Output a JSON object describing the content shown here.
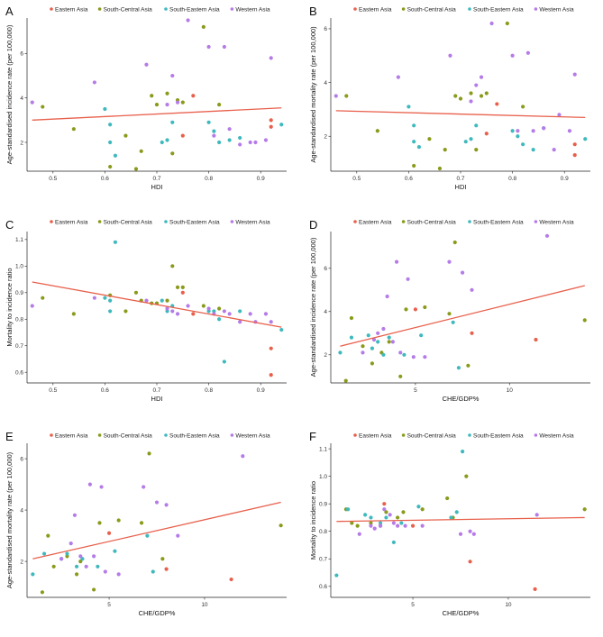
{
  "legend_title": "",
  "region_colors": {
    "Eastern Asia": "#e8604c",
    "South-Central Asia": "#8a9a1b",
    "South-Eastern Asia": "#3fb9bd",
    "Western Asia": "#b57be8"
  },
  "chart_data": [
    {
      "id": "A",
      "type": "scatter",
      "legend": [
        "Eastern Asia",
        "South-Central Asia",
        "South-Eastern Asia",
        "Western Asia"
      ],
      "xlabel": "HDI",
      "ylabel": "Age-standardised incidence rate (per 100,000)",
      "xlim": [
        0.45,
        0.95
      ],
      "ylim": [
        0.7,
        7.6
      ],
      "xticks": [
        0.5,
        0.6,
        0.7,
        0.8,
        0.9
      ],
      "yticks": [
        2,
        4,
        6
      ],
      "xtick_labels": [
        "0.5",
        "0.6",
        "0.7",
        "0.8",
        "0.9"
      ],
      "ytick_labels": [
        "2",
        "4",
        "6"
      ],
      "fit": [
        [
          0.46,
          3.0
        ],
        [
          0.94,
          3.55
        ]
      ],
      "series": [
        {
          "name": "Eastern Asia",
          "x": [
            0.75,
            0.77,
            0.92,
            0.92
          ],
          "y": [
            2.3,
            4.1,
            3.0,
            2.7
          ]
        },
        {
          "name": "South-Central Asia",
          "x": [
            0.48,
            0.54,
            0.61,
            0.64,
            0.66,
            0.67,
            0.69,
            0.7,
            0.72,
            0.73,
            0.74,
            0.75,
            0.79,
            0.82
          ],
          "y": [
            3.6,
            2.6,
            0.9,
            2.3,
            0.8,
            1.6,
            4.1,
            3.7,
            4.2,
            1.5,
            3.9,
            3.8,
            7.2,
            3.7
          ]
        },
        {
          "name": "South-Eastern Asia",
          "x": [
            0.6,
            0.61,
            0.62,
            0.61,
            0.71,
            0.72,
            0.73,
            0.8,
            0.81,
            0.82,
            0.84,
            0.86,
            0.94
          ],
          "y": [
            3.5,
            2.0,
            1.4,
            2.8,
            2.0,
            2.1,
            2.9,
            2.9,
            2.5,
            2.0,
            2.1,
            2.2,
            2.8
          ]
        },
        {
          "name": "Western Asia",
          "x": [
            0.46,
            0.58,
            0.68,
            0.72,
            0.73,
            0.74,
            0.76,
            0.8,
            0.81,
            0.83,
            0.84,
            0.86,
            0.88,
            0.89,
            0.91,
            0.92
          ],
          "y": [
            3.8,
            4.7,
            5.5,
            3.7,
            5.0,
            3.8,
            7.5,
            6.3,
            2.3,
            6.3,
            2.6,
            1.9,
            2.0,
            2.0,
            2.1,
            5.8
          ]
        }
      ]
    },
    {
      "id": "B",
      "type": "scatter",
      "legend": [
        "Eastern Asia",
        "South-Central Asia",
        "South-Eastern Asia",
        "Western Asia"
      ],
      "xlabel": "HDI",
      "ylabel": "Age-standardised mortality rate (per 100,000)",
      "xlim": [
        0.45,
        0.95
      ],
      "ylim": [
        0.7,
        6.4
      ],
      "xticks": [
        0.5,
        0.6,
        0.7,
        0.8,
        0.9
      ],
      "yticks": [
        2,
        4,
        6
      ],
      "xtick_labels": [
        "0.5",
        "0.6",
        "0.7",
        "0.8",
        "0.9"
      ],
      "ytick_labels": [
        "2",
        "4",
        "6"
      ],
      "fit": [
        [
          0.46,
          2.95
        ],
        [
          0.94,
          2.7
        ]
      ],
      "series": [
        {
          "name": "Eastern Asia",
          "x": [
            0.75,
            0.77,
            0.92,
            0.92
          ],
          "y": [
            2.1,
            3.2,
            1.7,
            1.3
          ]
        },
        {
          "name": "South-Central Asia",
          "x": [
            0.48,
            0.54,
            0.61,
            0.64,
            0.66,
            0.67,
            0.69,
            0.7,
            0.72,
            0.73,
            0.74,
            0.75,
            0.79,
            0.82
          ],
          "y": [
            3.5,
            2.2,
            0.9,
            1.9,
            0.8,
            1.5,
            3.5,
            3.4,
            3.6,
            1.5,
            3.5,
            3.6,
            6.2,
            3.1
          ]
        },
        {
          "name": "South-Eastern Asia",
          "x": [
            0.6,
            0.61,
            0.62,
            0.61,
            0.71,
            0.72,
            0.73,
            0.8,
            0.81,
            0.82,
            0.84,
            0.86,
            0.94
          ],
          "y": [
            3.1,
            1.8,
            1.6,
            2.4,
            1.8,
            1.9,
            2.4,
            2.2,
            2.0,
            1.7,
            1.5,
            2.3,
            1.9
          ]
        },
        {
          "name": "Western Asia",
          "x": [
            0.46,
            0.58,
            0.68,
            0.72,
            0.73,
            0.74,
            0.76,
            0.8,
            0.81,
            0.83,
            0.84,
            0.86,
            0.88,
            0.89,
            0.91,
            0.92
          ],
          "y": [
            3.5,
            4.2,
            5.0,
            3.3,
            3.9,
            4.2,
            6.2,
            5.0,
            2.2,
            5.1,
            2.2,
            2.3,
            1.5,
            2.8,
            2.2,
            4.3
          ]
        }
      ]
    },
    {
      "id": "C",
      "type": "scatter",
      "legend": [
        "Eastern Asia",
        "South-Central Asia",
        "South-Eastern Asia",
        "Western Asia"
      ],
      "xlabel": "HDI",
      "ylabel": "Mortality to incidence ratio",
      "xlim": [
        0.45,
        0.95
      ],
      "ylim": [
        0.56,
        1.13
      ],
      "xticks": [
        0.5,
        0.6,
        0.7,
        0.8,
        0.9
      ],
      "yticks": [
        0.6,
        0.7,
        0.8,
        0.9,
        1.0,
        1.1
      ],
      "xtick_labels": [
        "0.5",
        "0.6",
        "0.7",
        "0.8",
        "0.9"
      ],
      "ytick_labels": [
        "0.6",
        "0.7",
        "0.8",
        "0.9",
        "1.0",
        "1.1"
      ],
      "fit": [
        [
          0.46,
          0.94
        ],
        [
          0.94,
          0.77
        ]
      ],
      "series": [
        {
          "name": "Eastern Asia",
          "x": [
            0.75,
            0.77,
            0.92,
            0.92
          ],
          "y": [
            0.9,
            0.82,
            0.69,
            0.59
          ]
        },
        {
          "name": "South-Central Asia",
          "x": [
            0.48,
            0.54,
            0.61,
            0.64,
            0.66,
            0.67,
            0.69,
            0.7,
            0.72,
            0.73,
            0.74,
            0.75,
            0.79,
            0.82
          ],
          "y": [
            0.88,
            0.82,
            0.89,
            0.83,
            0.9,
            0.87,
            0.86,
            0.86,
            0.87,
            1.0,
            0.92,
            0.92,
            0.85,
            0.84
          ]
        },
        {
          "name": "South-Eastern Asia",
          "x": [
            0.6,
            0.61,
            0.62,
            0.61,
            0.71,
            0.72,
            0.73,
            0.8,
            0.81,
            0.82,
            0.83,
            0.86,
            0.94
          ],
          "y": [
            0.88,
            0.87,
            1.09,
            0.83,
            0.87,
            0.83,
            0.85,
            0.83,
            0.83,
            0.8,
            0.64,
            0.83,
            0.76
          ]
        },
        {
          "name": "Western Asia",
          "x": [
            0.46,
            0.58,
            0.68,
            0.72,
            0.73,
            0.74,
            0.76,
            0.8,
            0.81,
            0.83,
            0.84,
            0.86,
            0.88,
            0.89,
            0.91,
            0.92
          ],
          "y": [
            0.85,
            0.88,
            0.87,
            0.84,
            0.83,
            0.82,
            0.85,
            0.84,
            0.82,
            0.83,
            0.82,
            0.79,
            0.82,
            0.79,
            0.82,
            0.79
          ]
        }
      ]
    },
    {
      "id": "D",
      "type": "scatter",
      "legend": [
        "Eastern Asia",
        "South-Central Asia",
        "South-Eastern Asia",
        "Western Asia"
      ],
      "xlabel": "CHE/GDP%",
      "ylabel": "Age-standardised incidence rate (per 100,000)",
      "xlim": [
        0.5,
        14.3
      ],
      "ylim": [
        0.7,
        7.7
      ],
      "xticks": [
        5,
        10
      ],
      "yticks": [
        2,
        4,
        6
      ],
      "xtick_labels": [
        "5",
        "10"
      ],
      "ytick_labels": [
        "2",
        "4",
        "6"
      ],
      "fit": [
        [
          1.0,
          2.4
        ],
        [
          14.0,
          5.2
        ]
      ],
      "series": [
        {
          "name": "Eastern Asia",
          "x": [
            5.0,
            8.0,
            11.4
          ],
          "y": [
            4.1,
            3.0,
            2.7
          ]
        },
        {
          "name": "South-Central Asia",
          "x": [
            1.3,
            1.6,
            2.2,
            2.7,
            3.2,
            3.6,
            4.2,
            4.5,
            5.5,
            6.8,
            7.1,
            7.8,
            14.0
          ],
          "y": [
            0.8,
            3.7,
            2.4,
            1.6,
            2.1,
            2.6,
            1.0,
            4.1,
            4.2,
            3.9,
            7.2,
            1.5,
            3.6
          ]
        },
        {
          "name": "South-Eastern Asia",
          "x": [
            1.0,
            1.6,
            2.5,
            2.7,
            3.0,
            3.3,
            3.6,
            4.4,
            5.3,
            7.0,
            7.3
          ],
          "y": [
            2.1,
            2.8,
            2.9,
            2.3,
            2.6,
            2.0,
            2.8,
            2.0,
            2.9,
            3.5,
            1.4
          ]
        },
        {
          "name": "Western Asia",
          "x": [
            2.2,
            2.8,
            3.0,
            3.3,
            3.5,
            3.8,
            4.0,
            4.2,
            4.6,
            4.9,
            5.5,
            6.8,
            7.5,
            8.0,
            12.0
          ],
          "y": [
            2.1,
            2.7,
            3.0,
            3.2,
            4.7,
            2.6,
            6.3,
            2.1,
            5.5,
            1.9,
            1.9,
            6.3,
            5.8,
            5.0,
            7.5
          ]
        }
      ]
    },
    {
      "id": "E",
      "type": "scatter",
      "legend": [
        "Eastern Asia",
        "South-Central Asia",
        "South-Eastern Asia",
        "Western Asia"
      ],
      "xlabel": "CHE/GDP%",
      "ylabel": "Age-standardised mortality rate (per 100,000)",
      "xlim": [
        0.7,
        14.3
      ],
      "ylim": [
        0.6,
        6.6
      ],
      "xticks": [
        5,
        10
      ],
      "yticks": [
        2,
        4,
        6
      ],
      "xtick_labels": [
        "5",
        "10"
      ],
      "ytick_labels": [
        "2",
        "4",
        "6"
      ],
      "fit": [
        [
          1.0,
          2.1
        ],
        [
          14.0,
          4.3
        ]
      ],
      "series": [
        {
          "name": "Eastern Asia",
          "x": [
            5.0,
            8.0,
            11.4
          ],
          "y": [
            3.1,
            1.7,
            1.3
          ]
        },
        {
          "name": "South-Central Asia",
          "x": [
            1.5,
            1.8,
            2.1,
            2.8,
            3.3,
            3.5,
            4.2,
            4.5,
            5.5,
            6.7,
            7.1,
            7.8,
            14.0
          ],
          "y": [
            0.8,
            3.0,
            1.8,
            2.2,
            1.5,
            2.0,
            0.9,
            3.5,
            3.6,
            3.5,
            6.2,
            2.1,
            3.4
          ]
        },
        {
          "name": "South-Eastern Asia",
          "x": [
            1.0,
            1.6,
            2.5,
            2.8,
            3.3,
            3.6,
            4.4,
            5.3,
            7.0,
            7.3
          ],
          "y": [
            1.5,
            2.3,
            2.1,
            2.3,
            1.8,
            2.1,
            1.8,
            2.4,
            3.0,
            1.6
          ]
        },
        {
          "name": "Western Asia",
          "x": [
            2.5,
            3.0,
            3.2,
            3.5,
            3.8,
            4.0,
            4.2,
            4.6,
            4.8,
            5.5,
            6.8,
            7.5,
            8.0,
            8.6,
            12.0
          ],
          "y": [
            2.1,
            2.7,
            3.8,
            2.2,
            1.8,
            5.0,
            2.2,
            4.9,
            1.6,
            1.5,
            4.9,
            4.3,
            4.2,
            3.0,
            6.1
          ]
        }
      ]
    },
    {
      "id": "F",
      "type": "scatter",
      "legend": [
        "Eastern Asia",
        "South-Central Asia",
        "South-Eastern Asia",
        "Western Asia"
      ],
      "xlabel": "CHE/GDP%",
      "ylabel": "Mortality to incidence ratio",
      "xlim": [
        0.7,
        14.3
      ],
      "ylim": [
        0.56,
        1.12
      ],
      "xticks": [
        5,
        10
      ],
      "yticks": [
        0.6,
        0.7,
        0.8,
        0.9,
        1.0,
        1.1
      ],
      "xtick_labels": [
        "5",
        "10"
      ],
      "ytick_labels": [
        "0.6",
        "0.7",
        "0.8",
        "0.9",
        "1.0",
        "1.1"
      ],
      "fit": [
        [
          1.0,
          0.836
        ],
        [
          14.0,
          0.85
        ]
      ],
      "series": [
        {
          "name": "Eastern Asia",
          "x": [
            3.5,
            5.0,
            8.0,
            11.4
          ],
          "y": [
            0.9,
            0.82,
            0.69,
            0.59
          ]
        },
        {
          "name": "South-Central Asia",
          "x": [
            1.5,
            1.8,
            2.1,
            2.8,
            3.3,
            3.6,
            4.2,
            4.5,
            5.5,
            6.8,
            7.1,
            7.8,
            14.0
          ],
          "y": [
            0.88,
            0.83,
            0.82,
            0.83,
            0.82,
            0.87,
            0.85,
            0.87,
            0.88,
            0.92,
            0.85,
            1.0,
            0.88
          ]
        },
        {
          "name": "South-Eastern Asia",
          "x": [
            1.0,
            1.6,
            2.5,
            2.8,
            3.3,
            3.6,
            4.0,
            4.4,
            5.3,
            7.0,
            7.3,
            7.6
          ],
          "y": [
            0.64,
            0.88,
            0.86,
            0.85,
            0.83,
            0.85,
            0.76,
            0.83,
            0.89,
            0.85,
            0.87,
            1.09
          ]
        },
        {
          "name": "Western Asia",
          "x": [
            2.2,
            2.8,
            3.0,
            3.3,
            3.5,
            3.8,
            4.0,
            4.2,
            4.6,
            5.5,
            7.5,
            8.0,
            8.2,
            11.5
          ],
          "y": [
            0.79,
            0.82,
            0.81,
            0.82,
            0.88,
            0.86,
            0.83,
            0.82,
            0.82,
            0.82,
            0.79,
            0.8,
            0.79,
            0.86
          ]
        }
      ]
    }
  ]
}
